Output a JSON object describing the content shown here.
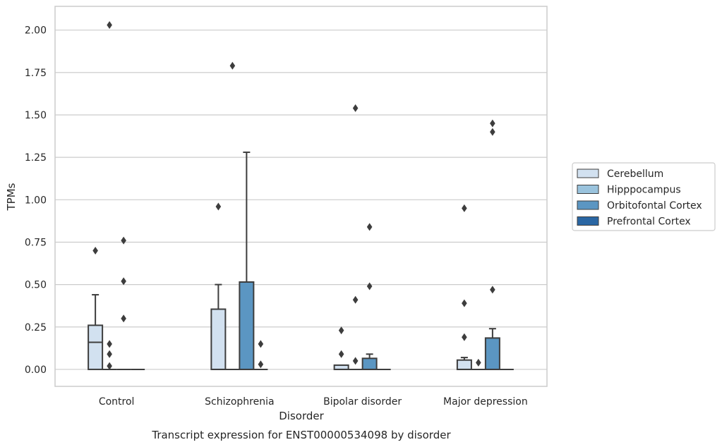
{
  "chart_data": {
    "type": "box",
    "title": "",
    "caption": "Transcript expression for ENST00000534098 by disorder",
    "xlabel": "Disorder",
    "ylabel": "TPMs",
    "ylim": [
      -0.1,
      2.14
    ],
    "yticks": [
      "0.00",
      "0.25",
      "0.50",
      "0.75",
      "1.00",
      "1.25",
      "1.50",
      "1.75",
      "2.00"
    ],
    "categories": [
      "Control",
      "Schizophrenia",
      "Bipolar disorder",
      "Major depression"
    ],
    "grid": true,
    "legend_position": "right",
    "series": [
      {
        "name": "Cerebellum",
        "color": "#d2e1f0",
        "boxes": [
          {
            "q1": 0.0,
            "median": 0.16,
            "q3": 0.26,
            "whisker_low": 0.0,
            "whisker_high": 0.44,
            "outliers": [
              0.7
            ]
          },
          {
            "q1": 0.0,
            "median": 0.0,
            "q3": 0.355,
            "whisker_low": 0.0,
            "whisker_high": 0.5,
            "outliers": [
              0.96
            ]
          },
          {
            "q1": 0.0,
            "median": 0.0,
            "q3": 0.025,
            "whisker_low": 0.0,
            "whisker_high": 0.025,
            "outliers": [
              0.09,
              0.23
            ]
          },
          {
            "q1": 0.0,
            "median": 0.0,
            "q3": 0.055,
            "whisker_low": 0.0,
            "whisker_high": 0.07,
            "outliers": [
              0.19,
              0.39,
              0.95
            ]
          }
        ]
      },
      {
        "name": "Hipppocampus",
        "color": "#9ac3dd",
        "boxes": [
          {
            "q1": 0.0,
            "median": 0.0,
            "q3": 0.0,
            "whisker_low": 0.0,
            "whisker_high": 0.0,
            "outliers": [
              0.02,
              0.09,
              0.15,
              2.03
            ]
          },
          {
            "q1": 0.0,
            "median": 0.0,
            "q3": 0.0,
            "whisker_low": 0.0,
            "whisker_high": 0.0,
            "outliers": [
              1.79
            ]
          },
          {
            "q1": 0.0,
            "median": 0.0,
            "q3": 0.0,
            "whisker_low": 0.0,
            "whisker_high": 0.0,
            "outliers": [
              0.05,
              0.41,
              1.54
            ]
          },
          {
            "q1": 0.0,
            "median": 0.0,
            "q3": 0.0,
            "whisker_low": 0.0,
            "whisker_high": 0.0,
            "outliers": [
              0.04
            ]
          }
        ]
      },
      {
        "name": "Orbitofontal Cortex",
        "color": "#5b96c2",
        "boxes": [
          {
            "q1": 0.0,
            "median": 0.0,
            "q3": 0.0,
            "whisker_low": 0.0,
            "whisker_high": 0.0,
            "outliers": [
              0.3,
              0.52,
              0.76
            ]
          },
          {
            "q1": 0.0,
            "median": 0.0,
            "q3": 0.515,
            "whisker_low": 0.0,
            "whisker_high": 1.28,
            "outliers": []
          },
          {
            "q1": 0.0,
            "median": 0.0,
            "q3": 0.065,
            "whisker_low": 0.0,
            "whisker_high": 0.09,
            "outliers": [
              0.49,
              0.84
            ]
          },
          {
            "q1": 0.0,
            "median": 0.0,
            "q3": 0.185,
            "whisker_low": 0.0,
            "whisker_high": 0.24,
            "outliers": [
              0.47,
              1.4,
              1.45
            ]
          }
        ]
      },
      {
        "name": "Prefrontal Cortex",
        "color": "#2a66a3",
        "boxes": [
          {
            "q1": 0.0,
            "median": 0.0,
            "q3": 0.0,
            "whisker_low": 0.0,
            "whisker_high": 0.0,
            "outliers": []
          },
          {
            "q1": 0.0,
            "median": 0.0,
            "q3": 0.0,
            "whisker_low": 0.0,
            "whisker_high": 0.0,
            "outliers": [
              0.03,
              0.15
            ]
          },
          {
            "q1": 0.0,
            "median": 0.0,
            "q3": 0.0,
            "whisker_low": 0.0,
            "whisker_high": 0.0,
            "outliers": []
          },
          {
            "q1": 0.0,
            "median": 0.0,
            "q3": 0.0,
            "whisker_low": 0.0,
            "whisker_high": 0.0,
            "outliers": []
          }
        ]
      }
    ]
  },
  "colors": {
    "edge": "#3d3d3d",
    "grid": "#cccccc",
    "frame": "#cccccc"
  }
}
